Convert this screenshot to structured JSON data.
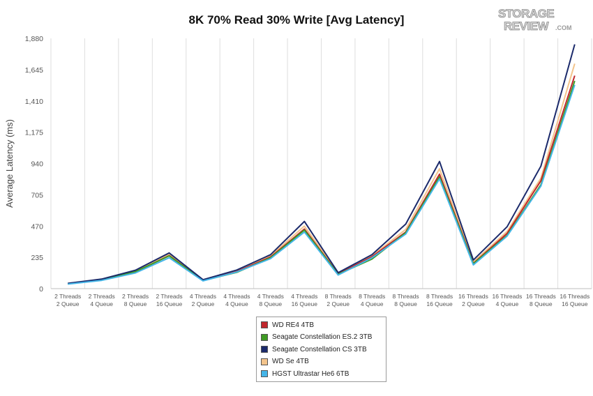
{
  "title": "8K 70% Read 30% Write [Avg Latency]",
  "logo": {
    "line1": "STORAGE",
    "line2": "REVIEW",
    "suffix": ".COM"
  },
  "chart_data": {
    "type": "line",
    "title": "8K 70% Read 30% Write [Avg Latency]",
    "xlabel": "",
    "ylabel": "Average Latency (ms)",
    "ylim": [
      0,
      1880
    ],
    "yticks": [
      0,
      235,
      470,
      705,
      940,
      1175,
      1410,
      1645,
      1880
    ],
    "ytick_labels": [
      "0",
      "235",
      "470",
      "705",
      "940",
      "1,175",
      "1,410",
      "1,645",
      "1,880"
    ],
    "grid": "vertical",
    "legend_position": "bottom-center",
    "categories": [
      [
        "2 Threads",
        "2 Queue"
      ],
      [
        "2 Threads",
        "4 Queue"
      ],
      [
        "2 Threads",
        "8 Queue"
      ],
      [
        "2 Threads",
        "16 Queue"
      ],
      [
        "4 Threads",
        "2 Queue"
      ],
      [
        "4 Threads",
        "4 Queue"
      ],
      [
        "4 Threads",
        "8 Queue"
      ],
      [
        "4 Threads",
        "16 Queue"
      ],
      [
        "8 Threads",
        "2 Queue"
      ],
      [
        "8 Threads",
        "4 Queue"
      ],
      [
        "8 Threads",
        "8 Queue"
      ],
      [
        "8 Threads",
        "16 Queue"
      ],
      [
        "16 Threads",
        "2 Queue"
      ],
      [
        "16 Threads",
        "4 Queue"
      ],
      [
        "16 Threads",
        "8 Queue"
      ],
      [
        "16 Threads",
        "16 Queue"
      ]
    ],
    "series": [
      {
        "name": "WD RE4 4TB",
        "color": "#c0272d",
        "values": [
          36,
          66,
          125,
          248,
          62,
          128,
          238,
          448,
          110,
          240,
          425,
          860,
          190,
          415,
          810,
          1600
        ]
      },
      {
        "name": "Seagate Constellation ES.2 3TB",
        "color": "#3f9a24",
        "values": [
          37,
          67,
          127,
          246,
          61,
          122,
          232,
          440,
          108,
          222,
          420,
          840,
          188,
          400,
          780,
          1560
        ]
      },
      {
        "name": "Seagate Constellation CS 3TB",
        "color": "#1b2a6b",
        "values": [
          40,
          72,
          138,
          268,
          67,
          140,
          255,
          505,
          120,
          255,
          485,
          955,
          215,
          465,
          920,
          1835
        ]
      },
      {
        "name": "WD Se 4TB",
        "color": "#f3c48c",
        "values": [
          39,
          70,
          135,
          258,
          65,
          135,
          246,
          470,
          116,
          246,
          445,
          900,
          200,
          430,
          830,
          1690
        ]
      },
      {
        "name": "HGST Ultrastar He6 6TB",
        "color": "#45b5e8",
        "values": [
          34,
          62,
          118,
          232,
          58,
          125,
          225,
          425,
          102,
          232,
          410,
          825,
          178,
          395,
          770,
          1530
        ]
      }
    ]
  }
}
